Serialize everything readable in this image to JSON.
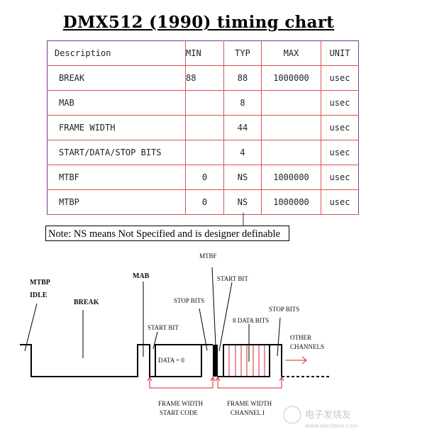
{
  "title": "DMX512 (1990) timing chart",
  "table": {
    "headers": [
      "Description",
      "MIN",
      "TYP",
      "MAX",
      "UNIT"
    ],
    "rows": [
      [
        "BREAK",
        "88",
        "88",
        "1000000",
        "usec"
      ],
      [
        "MAB",
        "",
        "8",
        "",
        "usec"
      ],
      [
        "FRAME WIDTH",
        "",
        "44",
        "",
        "usec"
      ],
      [
        "START/DATA/STOP BITS",
        "",
        "4",
        "",
        "usec"
      ],
      [
        "MTBF",
        "0",
        "NS",
        "1000000",
        "usec"
      ],
      [
        "MTBP",
        "0",
        "NS",
        "1000000",
        "usec"
      ]
    ]
  },
  "note": "Note: NS means Not Specified and is designer definable",
  "diagram": {
    "labels": {
      "mtbp": "MTBP",
      "idle": "IDLE",
      "break": "BREAK",
      "mab": "MAB",
      "start_bit_1": "START BIT",
      "stop_bits_1": "STOP BITS",
      "mtbf": "MTBF",
      "start_bit_2": "START BIT",
      "data_bits": "8 DATA BITS",
      "stop_bits_2": "STOP BITS",
      "other_1": "OTHER",
      "other_2": "CHANNELS",
      "data0": "DATA = 0",
      "fw1_a": "FRAME WIDTH",
      "fw1_b": "START CODE",
      "fw2_a": "FRAME WIDTH",
      "fw2_b": "CHANNEL I"
    },
    "colors": {
      "signal": "#000000",
      "annotation": "#d9232d",
      "table_border": "#d9534f"
    }
  },
  "watermark": {
    "line1": "电子发烧友",
    "line2": "www.elecfans.com"
  }
}
